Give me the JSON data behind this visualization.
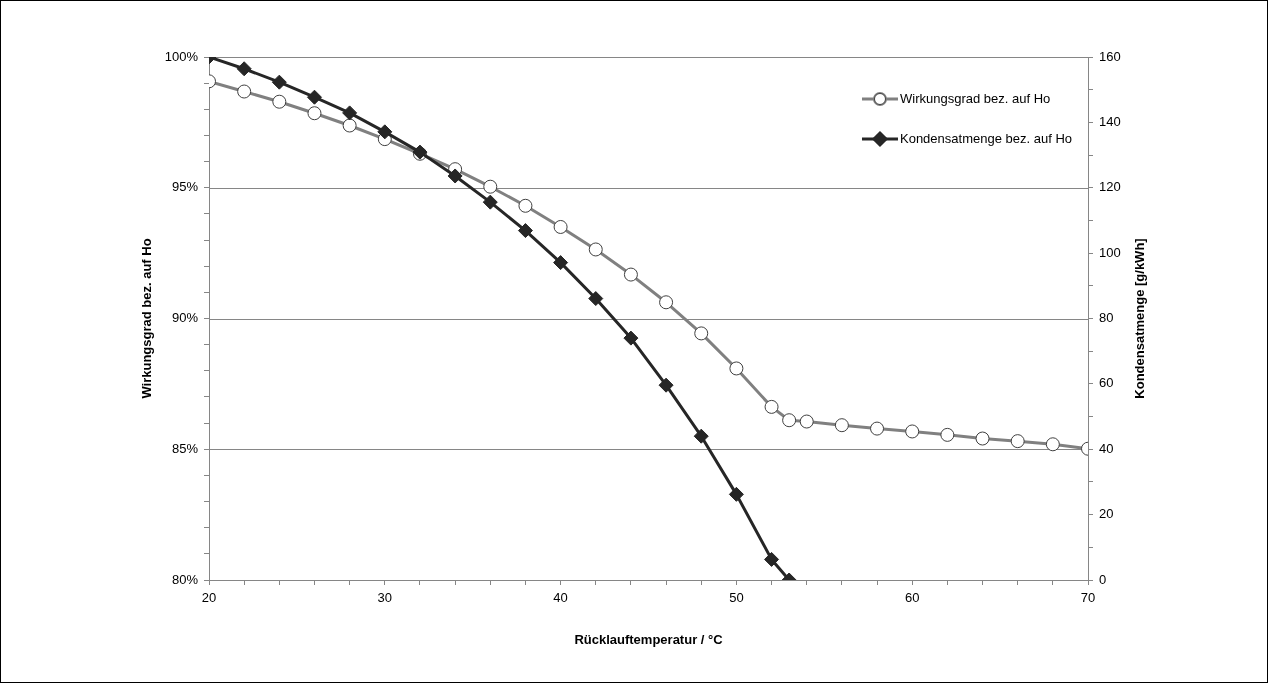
{
  "chart_data": {
    "type": "line",
    "xlabel": "Rücklauftemperatur / °C",
    "ylabel": "Wirkungsgrad bez. auf Ho",
    "y2label": "Kondensatmenge [g/kWh]",
    "xlim": [
      20,
      70
    ],
    "xticks": [
      20,
      {
        "value": 22,
        "label": null
      },
      {
        "value": 24,
        "label": null
      },
      {
        "value": 26,
        "label": null
      },
      {
        "value": 28,
        "label": null
      },
      30,
      {
        "value": 32,
        "label": null
      },
      {
        "value": 34,
        "label": null
      },
      {
        "value": 36,
        "label": null
      },
      {
        "value": 38,
        "label": null
      },
      40,
      {
        "value": 42,
        "label": null
      },
      {
        "value": 44,
        "label": null
      },
      {
        "value": 46,
        "label": null
      },
      {
        "value": 48,
        "label": null
      },
      50,
      {
        "value": 52,
        "label": null
      },
      {
        "value": 54,
        "label": null
      },
      {
        "value": 56,
        "label": null
      },
      {
        "value": 58,
        "label": null
      },
      60,
      {
        "value": 62,
        "label": null
      },
      {
        "value": 64,
        "label": null
      },
      {
        "value": 66,
        "label": null
      },
      {
        "value": 68,
        "label": null
      },
      70
    ],
    "ylim": [
      80,
      100
    ],
    "yticks": [
      {
        "value": 80,
        "label": "80%"
      },
      {
        "value": 81,
        "label": null
      },
      {
        "value": 82,
        "label": null
      },
      {
        "value": 83,
        "label": null
      },
      {
        "value": 84,
        "label": null
      },
      {
        "value": 85,
        "label": "85%"
      },
      {
        "value": 86,
        "label": null
      },
      {
        "value": 87,
        "label": null
      },
      {
        "value": 88,
        "label": null
      },
      {
        "value": 89,
        "label": null
      },
      {
        "value": 90,
        "label": "90%"
      },
      {
        "value": 91,
        "label": null
      },
      {
        "value": 92,
        "label": null
      },
      {
        "value": 93,
        "label": null
      },
      {
        "value": 94,
        "label": null
      },
      {
        "value": 95,
        "label": "95%"
      },
      {
        "value": 96,
        "label": null
      },
      {
        "value": 97,
        "label": null
      },
      {
        "value": 98,
        "label": null
      },
      {
        "value": 99,
        "label": null
      },
      {
        "value": 100,
        "label": "100%"
      }
    ],
    "y2lim": [
      0,
      160
    ],
    "y2ticks": [
      0,
      {
        "value": 10,
        "label": null
      },
      20,
      {
        "value": 30,
        "label": null
      },
      40,
      {
        "value": 50,
        "label": null
      },
      60,
      {
        "value": 70,
        "label": null
      },
      80,
      {
        "value": 90,
        "label": null
      },
      100,
      {
        "value": 110,
        "label": null
      },
      120,
      {
        "value": 130,
        "label": null
      },
      140,
      {
        "value": 150,
        "label": null
      },
      160
    ],
    "grid": "y",
    "legend": "top right",
    "series": [
      {
        "name": "Wirkungsgrad bez. auf Ho",
        "color": "#808080",
        "marker": "circle",
        "x": [
          20,
          22,
          24,
          26,
          28,
          30,
          32,
          34,
          36,
          38,
          40,
          42,
          44,
          46,
          48,
          50,
          52,
          53,
          54,
          56,
          58,
          60,
          62,
          64,
          66,
          68,
          70
        ],
        "values": [
          99.07,
          98.68,
          98.29,
          97.85,
          97.38,
          96.86,
          96.3,
          95.71,
          95.04,
          94.31,
          93.5,
          92.64,
          91.68,
          90.62,
          89.43,
          88.09,
          86.62,
          86.11,
          86.06,
          85.92,
          85.79,
          85.68,
          85.55,
          85.41,
          85.31,
          85.19,
          85.02
        ]
      },
      {
        "name": "Kondensatmenge bez. auf Ho",
        "color": "#262626",
        "marker": "diamond",
        "axis": "y2",
        "x": [
          20,
          22,
          24,
          26,
          28,
          30,
          32,
          34,
          36,
          38,
          40,
          42,
          44,
          46,
          48,
          50,
          52,
          53
        ],
        "values": [
          160,
          156.4,
          152.3,
          147.7,
          142.9,
          137.1,
          130.9,
          123.6,
          115.6,
          106.9,
          97.1,
          86.1,
          74,
          59.6,
          44,
          26.2,
          6.3,
          0
        ]
      }
    ]
  }
}
